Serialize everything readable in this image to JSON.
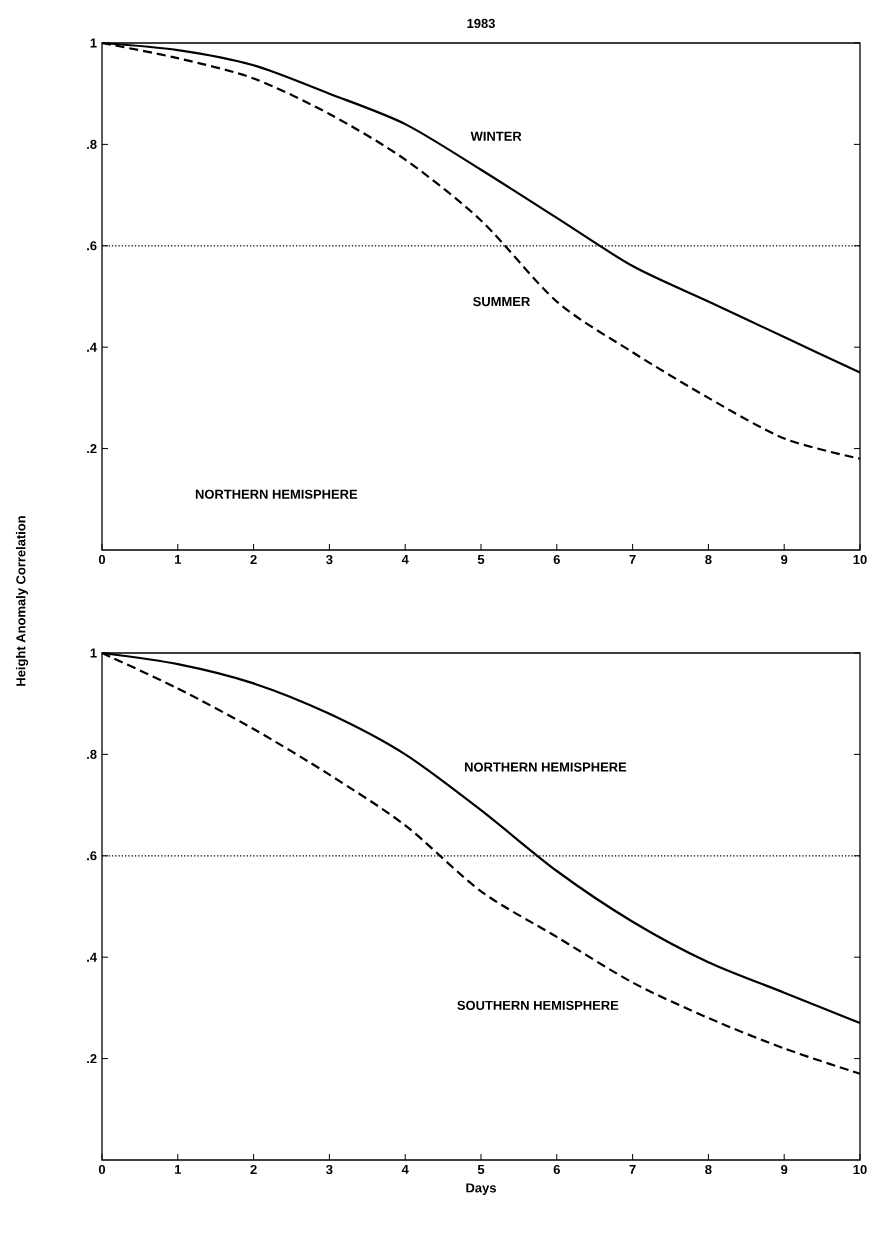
{
  "chart_data": [
    {
      "type": "line",
      "title": "1983",
      "ylabel": "Height Anomaly Correlation",
      "x": [
        0,
        1,
        2,
        3,
        4,
        5,
        6,
        7,
        8,
        9,
        10
      ],
      "series": [
        {
          "name": "WINTER",
          "color": "#000000",
          "line_style": "solid",
          "values": [
            1,
            0.986,
            0.956,
            0.9,
            0.84,
            0.75,
            0.655,
            0.56,
            0.49,
            0.42,
            0.35
          ]
        },
        {
          "name": "SUMMER",
          "color": "#000000",
          "line_style": "dashed",
          "values": [
            1,
            0.97,
            0.93,
            0.86,
            0.77,
            0.65,
            0.49,
            0.39,
            0.3,
            0.22,
            0.18
          ]
        }
      ],
      "annotations": [
        "NORTHERN HEMISPHERE"
      ],
      "ref_lines": [
        {
          "axis": "y",
          "value": 0.6,
          "line_style": "dotted"
        }
      ],
      "xlim": [
        0,
        10
      ],
      "ylim": [
        0,
        1
      ],
      "xticks": [
        0,
        1,
        2,
        3,
        4,
        5,
        6,
        7,
        8,
        9,
        10
      ],
      "yticks": [
        {
          "value": 0.2,
          "label": ".2"
        },
        {
          "value": 0.4,
          "label": ".4"
        },
        {
          "value": 0.6,
          "label": ".6"
        },
        {
          "value": 0.8,
          "label": ".8"
        },
        1
      ],
      "grid": false,
      "legend": false
    },
    {
      "type": "line",
      "xlabel": "Days",
      "x": [
        0,
        1,
        2,
        3,
        4,
        5,
        6,
        7,
        8,
        9,
        10
      ],
      "series": [
        {
          "name": "NORTHERN HEMISPHERE",
          "color": "#000000",
          "line_style": "solid",
          "values": [
            1,
            0.978,
            0.94,
            0.88,
            0.8,
            0.69,
            0.57,
            0.47,
            0.39,
            0.33,
            0.27
          ]
        },
        {
          "name": "SOUTHERN HEMISPHERE",
          "color": "#000000",
          "line_style": "dashed",
          "values": [
            1,
            0.93,
            0.85,
            0.76,
            0.66,
            0.53,
            0.44,
            0.35,
            0.28,
            0.22,
            0.17
          ]
        }
      ],
      "ref_lines": [
        {
          "axis": "y",
          "value": 0.6,
          "line_style": "dotted"
        }
      ],
      "xlim": [
        0,
        10
      ],
      "ylim": [
        0,
        1
      ],
      "xticks": [
        0,
        1,
        2,
        3,
        4,
        5,
        6,
        7,
        8,
        9,
        10
      ],
      "yticks": [
        {
          "value": 0.2,
          "label": ".2"
        },
        {
          "value": 0.4,
          "label": ".4"
        },
        {
          "value": 0.6,
          "label": ".6"
        },
        {
          "value": 0.8,
          "label": ".8"
        },
        1
      ],
      "grid": false,
      "legend": false
    }
  ]
}
